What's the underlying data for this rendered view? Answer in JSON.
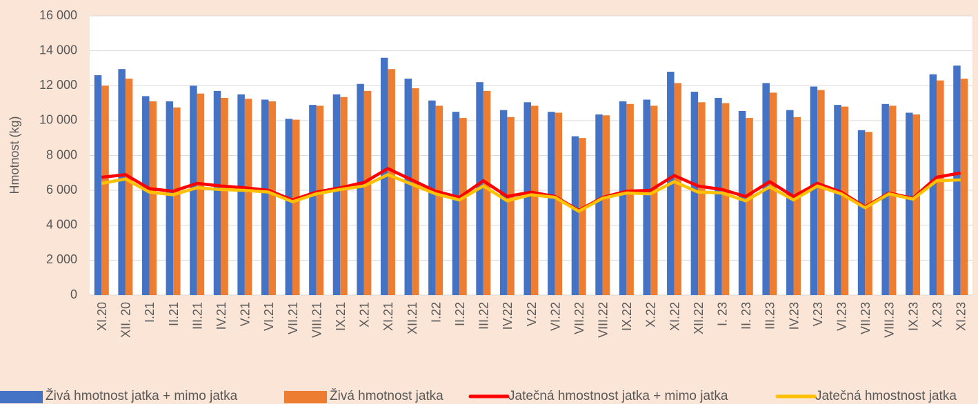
{
  "chart_data": {
    "type": "bar_line",
    "y_label": "Hmotnost (kg)",
    "categories": [
      "XI.20",
      "XII. 20",
      "I.21",
      "II.21",
      "III.21",
      "IV.21",
      "V.21",
      "VI.21",
      "VII.21",
      "VIII.21",
      "IX.21",
      "X.21",
      "XI.21",
      "XII.21",
      "I.22",
      "II.22",
      "III.22",
      "IV.22",
      "V.22",
      "VI.22",
      "VII.22",
      "VIII.22",
      "IX.22",
      "X.22",
      "XI.22",
      "XII.22",
      "I. 23",
      "II. 23",
      "III.23",
      "IV.23",
      "V.23",
      "VI.23",
      "VII.23",
      "VIII.23",
      "IX.23",
      "X.23",
      "XI.23"
    ],
    "series": [
      {
        "name": "Živá hmotnost jatka + mimo jatka",
        "kind": "bar",
        "color": "#4472c4",
        "values": [
          12600,
          12950,
          11400,
          11100,
          12000,
          11700,
          11500,
          11200,
          10100,
          10900,
          11500,
          12100,
          13600,
          12400,
          11150,
          10500,
          12200,
          10600,
          11050,
          10500,
          9100,
          10350,
          11100,
          11200,
          12800,
          11650,
          11300,
          10550,
          12150,
          10600,
          11950,
          10900,
          9450,
          10950,
          10450,
          12650,
          13150
        ]
      },
      {
        "name": "Živá hmotnost jatka",
        "kind": "bar",
        "color": "#ed7d31",
        "values": [
          12000,
          12400,
          11100,
          10750,
          11550,
          11300,
          11250,
          11100,
          10050,
          10850,
          11350,
          11700,
          12950,
          11850,
          10850,
          10150,
          11700,
          10200,
          10850,
          10450,
          9000,
          10300,
          10950,
          10850,
          12150,
          11050,
          11000,
          10150,
          11600,
          10200,
          11750,
          10800,
          9350,
          10850,
          10350,
          12300,
          12400
        ]
      },
      {
        "name": "Jatečná hmostnost jatka + mimo jatka",
        "kind": "line",
        "color": "#ff0000",
        "values": [
          6750,
          6900,
          6100,
          5950,
          6400,
          6250,
          6150,
          6000,
          5450,
          5900,
          6150,
          6450,
          7250,
          6600,
          5950,
          5600,
          6550,
          5650,
          5900,
          5650,
          4850,
          5600,
          5950,
          6000,
          6850,
          6250,
          6050,
          5650,
          6500,
          5650,
          6400,
          5900,
          5050,
          5850,
          5550,
          6750,
          7000
        ]
      },
      {
        "name": "Jatečná hmostnost jatka",
        "kind": "line",
        "color": "#ffc000",
        "values": [
          6400,
          6650,
          5900,
          5750,
          6150,
          6050,
          6000,
          5900,
          5350,
          5800,
          6050,
          6250,
          6900,
          6350,
          5800,
          5450,
          6250,
          5400,
          5750,
          5600,
          4800,
          5550,
          5850,
          5800,
          6500,
          5900,
          5850,
          5400,
          6200,
          5450,
          6250,
          5800,
          5000,
          5800,
          5500,
          6550,
          6600
        ]
      }
    ],
    "ylim": [
      0,
      16000
    ],
    "yticks": [
      0,
      {
        "value": 2000,
        "label": "2 000"
      },
      {
        "value": 4000,
        "label": "4 000"
      },
      {
        "value": 6000,
        "label": "6 000"
      },
      {
        "value": 8000,
        "label": "8 000"
      },
      {
        "value": 10000,
        "label": "10 000"
      },
      {
        "value": 12000,
        "label": "12 000"
      },
      {
        "value": 14000,
        "label": "14 000"
      },
      {
        "value": 16000,
        "label": "16 000"
      }
    ],
    "grid": true,
    "legend": "bottom"
  }
}
